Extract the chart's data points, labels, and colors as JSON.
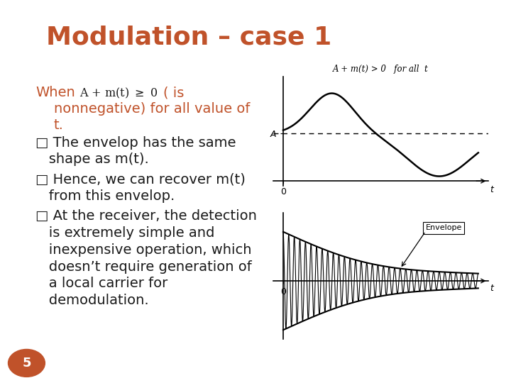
{
  "title": "Modulation – case 1",
  "title_color": "#C0522A",
  "title_fontsize": 26,
  "bg_color": "#FFFFFF",
  "text_color_orange": "#C0522A",
  "text_color_black": "#1A1A1A",
  "page_number": "5",
  "page_circle_color": "#C0522A",
  "font_size_body": 14,
  "top_chart_label": "A + m(t) > 0   for all  t",
  "bottom_chart_label": "Envelope"
}
